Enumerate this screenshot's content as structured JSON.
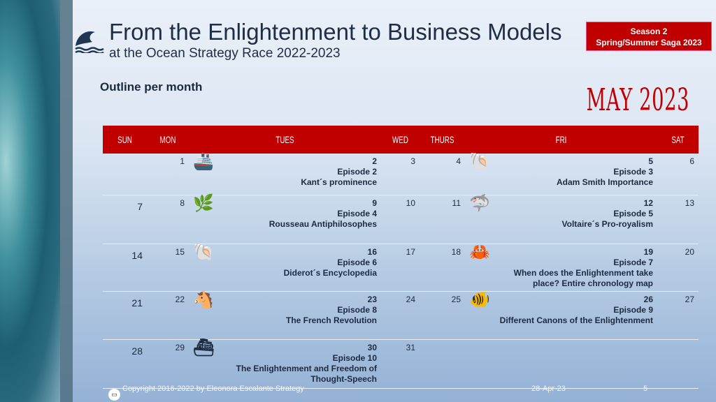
{
  "header": {
    "title": "From the Enlightenment to Business Models",
    "subtitle": "at the Ocean Strategy Race 2022-2023",
    "badge_line1": "Season 2",
    "badge_line2": "Spring/Summer Saga 2023"
  },
  "section_title": "Outline per month",
  "month": "MAY 2023",
  "days": [
    "SUN",
    "MON",
    "TUES",
    "WED",
    "THURS",
    "FRI",
    "SAT"
  ],
  "weeks": [
    {
      "sun": "",
      "mon": "1",
      "tue": {
        "icon": "ship-icon",
        "glyph": "🚢",
        "num": "2",
        "ep": "Episode 2",
        "title": "Kant´s prominence"
      },
      "wed": "3",
      "thu": "4",
      "fri": {
        "icon": "shell-icon",
        "glyph": "🐚",
        "num": "5",
        "ep": "Episode 3",
        "title": "Adam Smith Importance"
      },
      "sat": "6"
    },
    {
      "sun": "7",
      "mon": "8",
      "tue": {
        "icon": "seaweed-icon",
        "glyph": "🌿",
        "num": "9",
        "ep": "Episode 4",
        "title": "Rousseau Antiphilosophes"
      },
      "wed": "10",
      "thu": "11",
      "fri": {
        "icon": "shark-icon",
        "glyph": "🦈",
        "num": "12",
        "ep": "Episode 5",
        "title": "Voltaire´s Pro-royalism"
      },
      "sat": "13"
    },
    {
      "sun": "14",
      "mon": "15",
      "tue": {
        "icon": "scallop-icon",
        "glyph": "🐚",
        "num": "16",
        "ep": "Episode 6",
        "title": "Diderot´s Encyclopedia"
      },
      "wed": "17",
      "thu": "18",
      "fri": {
        "icon": "crab-icon",
        "glyph": "🦀",
        "num": "19",
        "ep": "Episode 7",
        "title": "When does the Enlightenment take place? Entire chronology map"
      },
      "sat": "20"
    },
    {
      "sun": "21",
      "mon": "22",
      "tue": {
        "icon": "seahorse-icon",
        "glyph": "🐴",
        "num": "23",
        "ep": "Episode 8",
        "title": "The French Revolution"
      },
      "wed": "24",
      "thu": "25",
      "fri": {
        "icon": "clownfish-icon",
        "glyph": "🐠",
        "num": "26",
        "ep": "Episode 9",
        "title": "Different Canons of the Enlightenment"
      },
      "sat": "27"
    },
    {
      "sun": "28",
      "mon": "29",
      "tue": {
        "icon": "boat-icon",
        "glyph": "⛴",
        "num": "30",
        "ep": "Episode 10",
        "title": "The Enlightenment and Freedom of Thought-Speech"
      },
      "wed": "31",
      "thu": "",
      "fri": null,
      "sat": ""
    }
  ],
  "footer": {
    "copyright": "Copyright 2016-2022 by Eleonora Escalante Strategy",
    "date": "28-Apr-23",
    "page": "5"
  },
  "colors": {
    "accent": "#c00000",
    "text": "#1c2a40"
  }
}
